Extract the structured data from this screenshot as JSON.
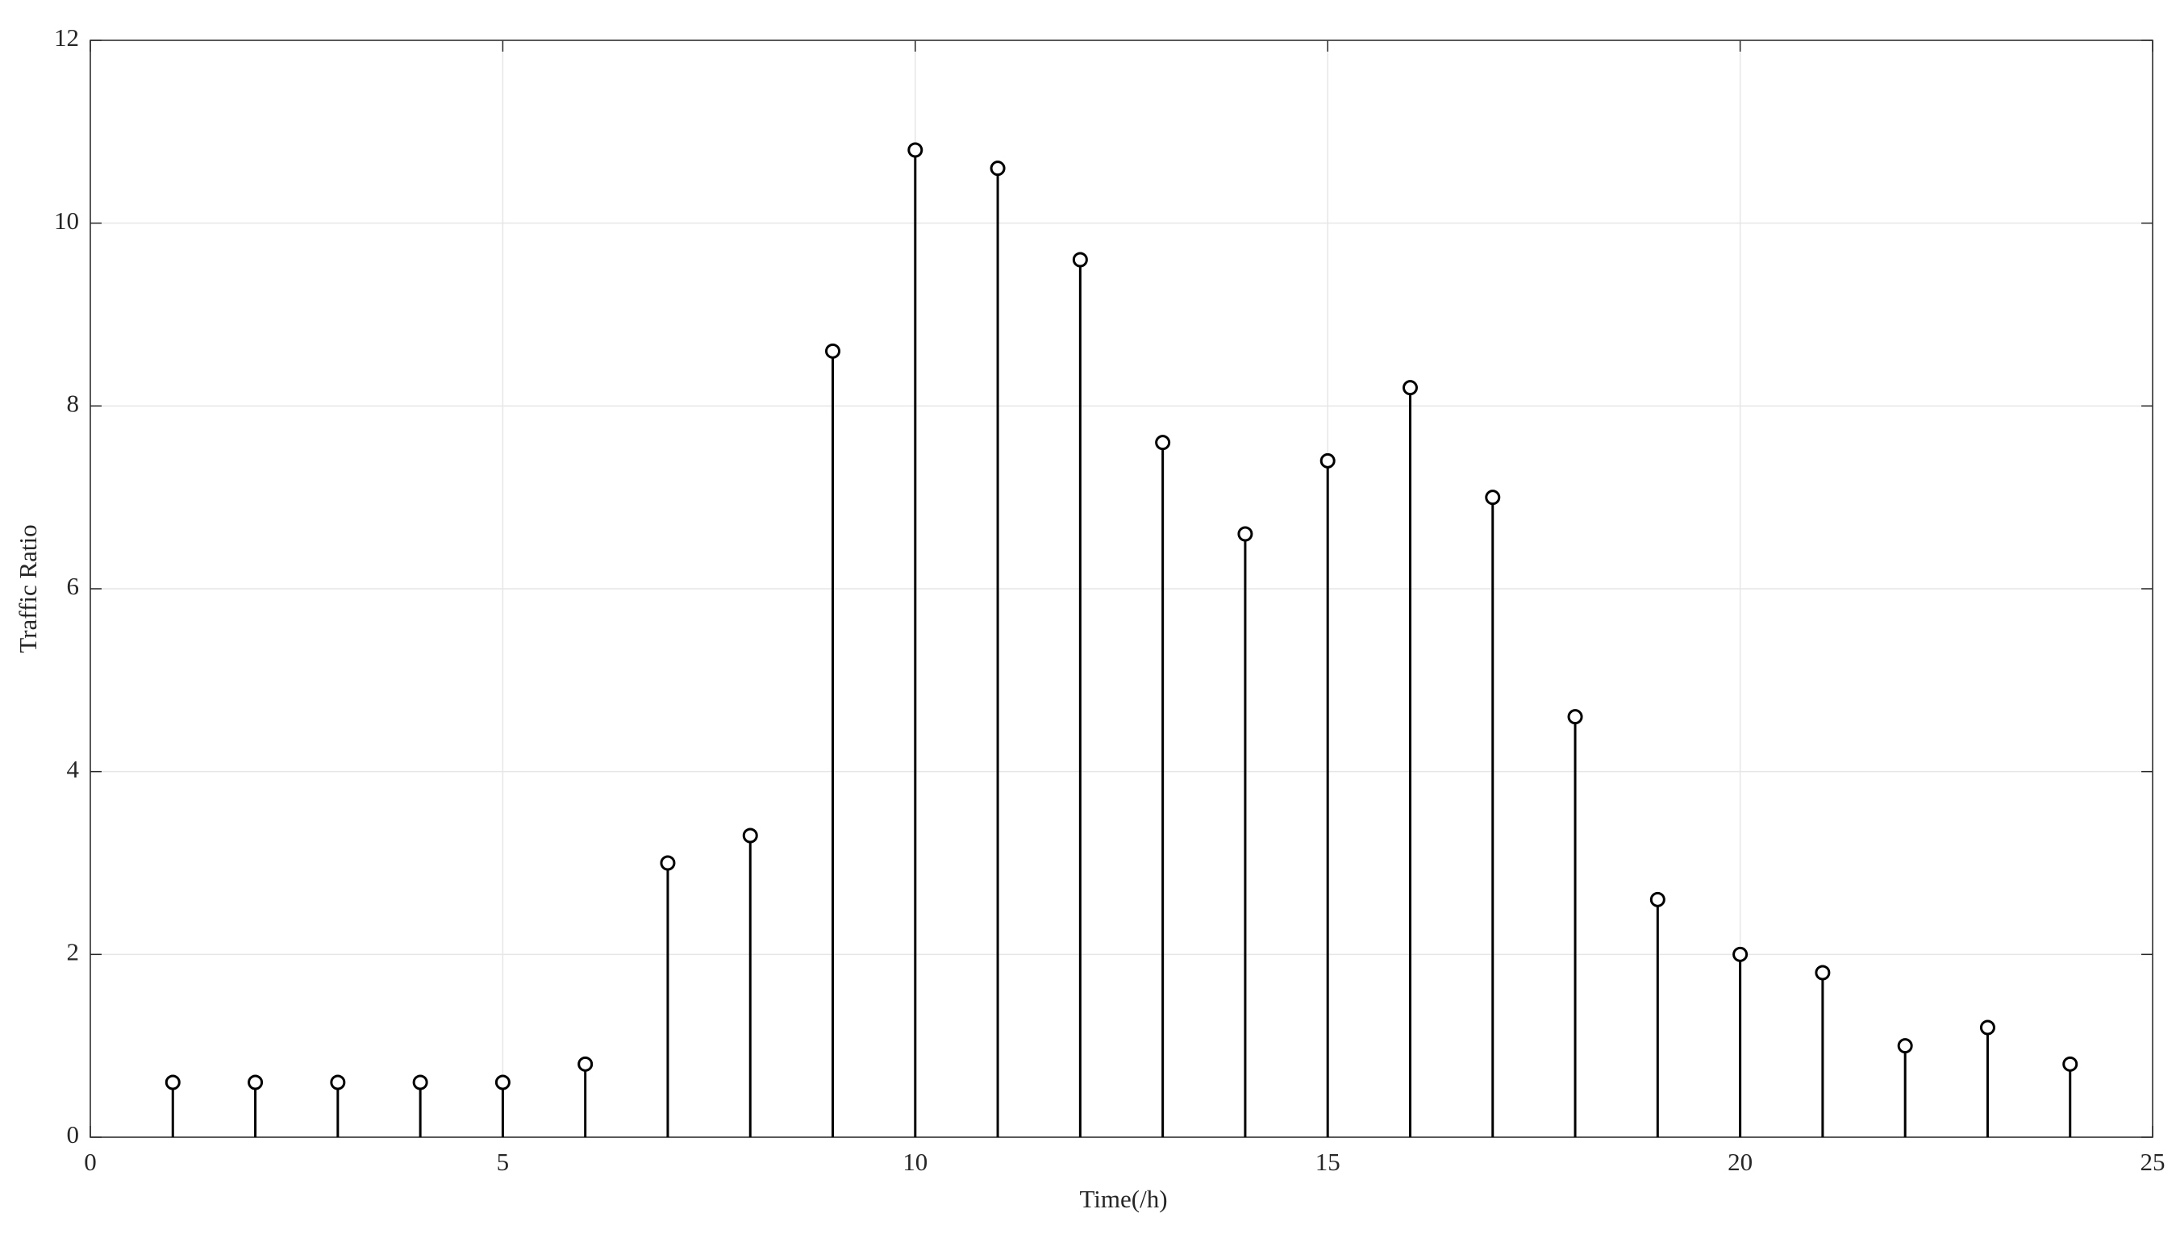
{
  "chart_data": {
    "type": "stem",
    "x": [
      1,
      2,
      3,
      4,
      5,
      6,
      7,
      8,
      9,
      10,
      11,
      12,
      13,
      14,
      15,
      16,
      17,
      18,
      19,
      20,
      21,
      22,
      23,
      24
    ],
    "values": [
      0.6,
      0.6,
      0.6,
      0.6,
      0.6,
      0.8,
      3.0,
      3.3,
      8.6,
      10.8,
      10.6,
      9.6,
      7.6,
      6.6,
      7.4,
      8.2,
      7.0,
      4.6,
      2.6,
      2.0,
      1.8,
      1.0,
      1.2,
      0.8
    ],
    "color": "#000000",
    "x_label": "Time(/h)",
    "y_label": "Traffic Ratio",
    "xlim": [
      0,
      25
    ],
    "xticks": [
      0,
      5,
      10,
      15,
      20,
      25
    ],
    "ylim": [
      0,
      12
    ],
    "yticks": [
      0,
      2,
      4,
      6,
      8,
      10,
      12
    ],
    "grid": true
  }
}
